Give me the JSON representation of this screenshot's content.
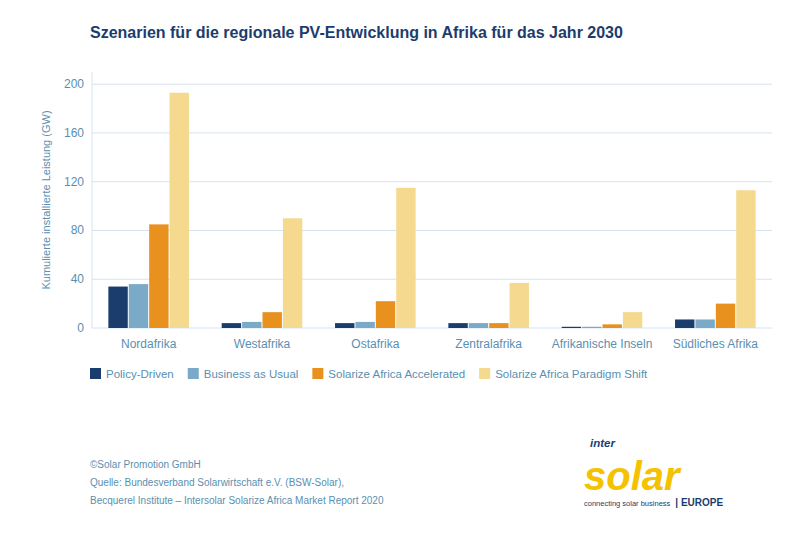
{
  "chart_data": {
    "type": "bar",
    "title": "Szenarien für die regionale PV-Entwicklung in Afrika für das Jahr 2030",
    "y_label": "Kumulierte installierte Leistung (GW)",
    "categories": [
      "Nordafrika",
      "Westafrika",
      "Ostafrika",
      "Zentralafrika",
      "Afrikanische Inseln",
      "Südliches Afrika"
    ],
    "series": [
      {
        "name": "Policy-Driven",
        "color": "#1b3d6e",
        "values": [
          34,
          4,
          4,
          4,
          1,
          7
        ]
      },
      {
        "name": "Business as Usual",
        "color": "#7aaac8",
        "values": [
          36,
          5,
          5,
          4,
          1,
          7
        ]
      },
      {
        "name": "Solarize Africa Accelerated",
        "color": "#e8911e",
        "values": [
          85,
          13,
          22,
          4,
          3,
          20
        ]
      },
      {
        "name": "Solarize Africa Paradigm Shift",
        "color": "#f5d98e",
        "values": [
          193,
          90,
          115,
          37,
          13,
          113
        ]
      }
    ],
    "ylim": [
      0,
      210
    ],
    "yticks": [
      0,
      40,
      80,
      120,
      160,
      200
    ],
    "grid": true,
    "legend": "bottom",
    "annotations": [
      "©Solar Promotion GmbH",
      "Quelle: Bundesverband Solarwirtschaft e.V. (BSW-Solar),",
      "Becquerel Institute – Intersolar Solarize Africa Market Report 2020",
      "inter",
      "solar",
      "connecting solar business",
      "| EUROPE"
    ]
  }
}
